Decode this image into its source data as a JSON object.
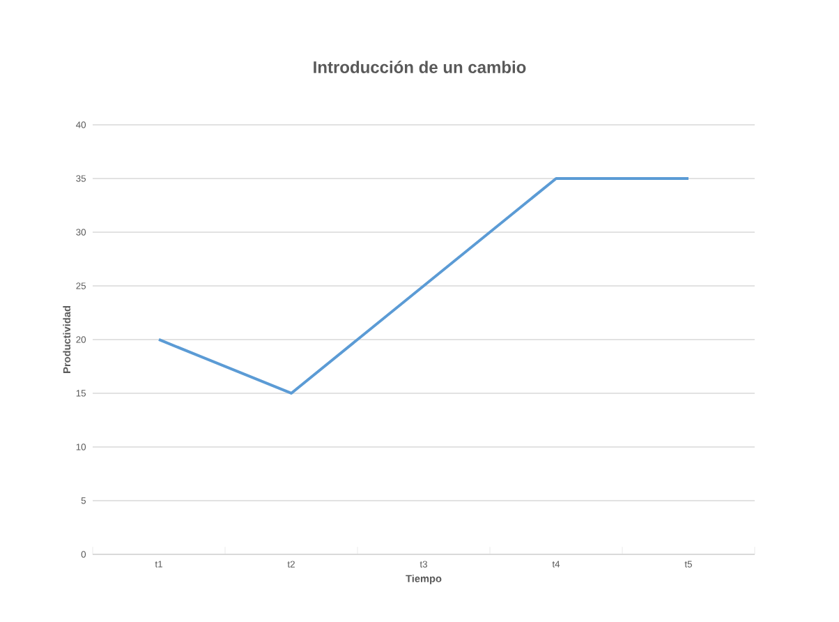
{
  "chart_data": {
    "type": "line",
    "title": "Introducción de un cambio",
    "xlabel": "Tiempo",
    "ylabel": "Productividad",
    "categories": [
      "t1",
      "t2",
      "t3",
      "t4",
      "t5"
    ],
    "series": [
      {
        "color": "#5b9bd5",
        "values": [
          20,
          15,
          25,
          35,
          35
        ]
      }
    ],
    "ylim": [
      0,
      40
    ],
    "yticks": [
      0,
      5,
      10,
      15,
      20,
      25,
      30,
      35,
      40
    ],
    "grid": "y",
    "marker": "none",
    "line_style": "solid"
  }
}
